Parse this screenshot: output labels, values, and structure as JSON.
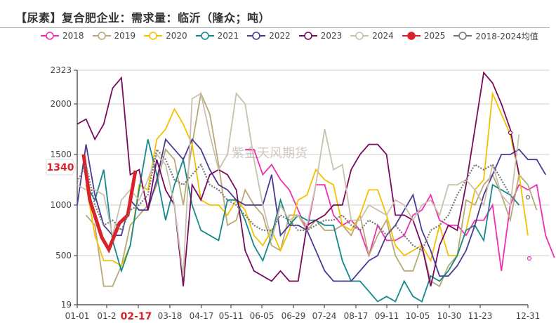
{
  "title": "【尿素】复合肥企业：需求量：临沂（隆众；吨）",
  "watermark": "紫金天风期货",
  "legend": [
    {
      "label": "2018",
      "color": "#f02fb0",
      "style": "hollow"
    },
    {
      "label": "2019",
      "color": "#b8a878",
      "style": "hollow"
    },
    {
      "label": "2020",
      "color": "#f5c000",
      "style": "hollow"
    },
    {
      "label": "2021",
      "color": "#12898c",
      "style": "hollow"
    },
    {
      "label": "2022",
      "color": "#4a3a94",
      "style": "hollow"
    },
    {
      "label": "2023",
      "color": "#7a0a5e",
      "style": "hollow"
    },
    {
      "label": "2024",
      "color": "#cbbfae",
      "style": "hollow"
    },
    {
      "label": "2025",
      "color": "#d9222a",
      "style": "filled"
    },
    {
      "label": "2018-2024均值",
      "color": "#777777",
      "style": "hollow"
    }
  ],
  "highlight": {
    "value_label": "1340",
    "x_label": "02-17",
    "color": "#d9222a"
  },
  "chart_data": {
    "type": "line",
    "title": "【尿素】复合肥企业：需求量：临沂（隆众；吨）",
    "xlabel": "",
    "ylabel": "",
    "ylim": [
      19,
      2323
    ],
    "yticks": [
      19,
      500,
      1000,
      1500,
      2000,
      2323
    ],
    "xticks": [
      "01-01",
      "01-2",
      "02-17",
      "03-18",
      "04-17",
      "05-11",
      "06-05",
      "06-29",
      "07-24",
      "08-17",
      "09-11",
      "10-05",
      "10-30",
      "11-23",
      "12-31"
    ],
    "grid": true,
    "legend_position": "top",
    "week_count": 52,
    "series": [
      {
        "name": "2018",
        "values": [
          null,
          null,
          null,
          null,
          null,
          null,
          null,
          null,
          null,
          null,
          null,
          null,
          null,
          null,
          null,
          null,
          null,
          null,
          null,
          1550,
          1550,
          1300,
          1400,
          1250,
          1150,
          950,
          750,
          1200,
          1200,
          900,
          800,
          850,
          750,
          500,
          800,
          650,
          650,
          700,
          900,
          950,
          1100,
          850,
          800,
          800,
          700,
          850,
          850,
          1000,
          350,
          1000,
          1200,
          1150,
          1200,
          700,
          480
        ]
      },
      {
        "name": "2019",
        "values": [
          null,
          900,
          800,
          200,
          200,
          400,
          800,
          900,
          1000,
          1200,
          1550,
          1450,
          1000,
          1600,
          2100,
          1900,
          1400,
          800,
          850,
          1150,
          1000,
          900,
          600,
          550,
          900,
          900,
          750,
          850,
          750,
          750,
          800,
          700,
          900,
          500,
          700,
          850,
          500,
          350,
          350,
          600,
          250,
          200,
          400,
          500,
          1050,
          1000,
          1200,
          1300,
          1100,
          850,
          1300,
          1200,
          950
        ]
      },
      {
        "name": "2020",
        "values": [
          null,
          1200,
          700,
          450,
          450,
          400,
          600,
          1200,
          1150,
          1650,
          1750,
          1950,
          1800,
          1600,
          1050,
          1000,
          1000,
          900,
          1050,
          950,
          700,
          600,
          750,
          550,
          750,
          1050,
          1100,
          1350,
          1250,
          1200,
          800,
          750,
          900,
          1150,
          1150,
          900,
          600,
          500,
          550,
          600,
          450,
          800,
          500,
          500,
          750,
          1150,
          1250,
          2100,
          1900,
          1700,
          1300,
          700
        ]
      },
      {
        "name": "2021",
        "values": [
          null,
          1200,
          1050,
          1350,
          650,
          350,
          600,
          1150,
          1650,
          1300,
          850,
          1200,
          1450,
          1000,
          750,
          700,
          650,
          1050,
          1050,
          850,
          600,
          450,
          700,
          1050,
          800,
          900,
          850,
          850,
          800,
          800,
          450,
          250,
          250,
          150,
          50,
          100,
          50,
          250,
          100,
          50,
          300,
          250,
          350,
          500,
          750,
          800,
          650,
          1200,
          1150,
          1100,
          1000
        ]
      },
      {
        "name": "2022",
        "values": [
          1000,
          1600,
          1100,
          800,
          700,
          700,
          1050,
          950,
          950,
          1250,
          1650,
          1550,
          1450,
          1650,
          1550,
          1350,
          1200,
          1150,
          1050,
          1000,
          1000,
          1000,
          1300,
          700,
          800,
          800,
          750,
          550,
          350,
          250,
          250,
          250,
          350,
          450,
          500,
          700,
          800,
          950,
          1100,
          750,
          550,
          300,
          300,
          400,
          550,
          800,
          1100,
          1300,
          1500,
          1500,
          1550,
          1450,
          1450,
          1300
        ]
      },
      {
        "name": "2023",
        "values": [
          1800,
          1850,
          1650,
          1800,
          2150,
          2250,
          1300,
          1350,
          950,
          1450,
          1150,
          1000,
          200,
          1200,
          1050,
          1300,
          1350,
          1300,
          1150,
          550,
          350,
          300,
          250,
          350,
          250,
          250,
          800,
          850,
          900,
          1000,
          1000,
          1350,
          1500,
          1600,
          1600,
          1500,
          900,
          900,
          850,
          600,
          200,
          600,
          800,
          750,
          1200,
          1750,
          2300,
          2200,
          2000,
          1750,
          1300
        ]
      },
      {
        "name": "2024",
        "values": [
          1200,
          1150,
          1150,
          1100,
          700,
          1050,
          1150,
          1050,
          1250,
          1500,
          1400,
          1000,
          300,
          2050,
          2100,
          1700,
          1350,
          1500,
          2100,
          2000,
          1450,
          1000,
          650,
          1000,
          850,
          900,
          800,
          1200,
          1750,
          1350,
          1400,
          850,
          850,
          1000,
          950,
          900,
          1050,
          1000,
          850,
          1000,
          1050,
          900,
          1200,
          1200,
          1250,
          1150,
          1000,
          1400,
          1100,
          1000,
          1700
        ]
      },
      {
        "name": "2025",
        "values": [
          1500,
          1050,
          680,
          560,
          820,
          900,
          1340
        ]
      },
      {
        "name": "2018-2024均值",
        "values": [
          1230,
          1400,
          1000,
          800,
          850,
          750,
          950,
          1000,
          1100,
          1550,
          1450,
          1250,
          1200,
          1300,
          1400,
          1200,
          1150,
          1050,
          1000,
          900,
          800,
          750,
          750,
          900,
          850,
          750,
          750,
          800,
          850,
          850,
          900,
          800,
          750,
          850,
          800,
          700,
          800,
          700,
          600,
          550,
          750,
          800,
          900,
          1100,
          1250,
          1400,
          1350,
          1400,
          1250,
          1100,
          1000
        ]
      }
    ]
  },
  "annotations": {
    "y_current": "1340",
    "x_current": "02-17"
  }
}
